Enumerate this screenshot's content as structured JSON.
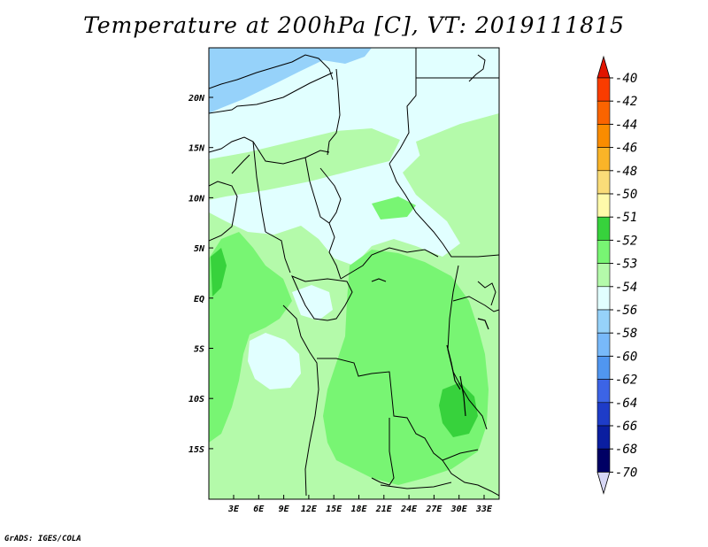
{
  "title": "Temperature at 200hPa [C], VT: 2019111815",
  "credit": "GrADS: IGES/COLA",
  "map": {
    "lat_labels": [
      "20N",
      "15N",
      "10N",
      "5N",
      "EQ",
      "5S",
      "10S",
      "15S"
    ],
    "lon_labels": [
      "3E",
      "6E",
      "9E",
      "12E",
      "15E",
      "18E",
      "21E",
      "24E",
      "27E",
      "30E",
      "33E"
    ],
    "colors": {
      "ocean_cold": "#96d2fa",
      "pale": "#e1ffff",
      "light_green": "#b4faaa",
      "mid_green": "#78f573",
      "dark_green": "#37d23c",
      "border": "#000000"
    }
  },
  "legend": {
    "labels": [
      "-40",
      "-42",
      "-44",
      "-46",
      "-48",
      "-50",
      "-51",
      "-52",
      "-53",
      "-54",
      "-56",
      "-58",
      "-60",
      "-62",
      "-64",
      "-66",
      "-68",
      "-70"
    ],
    "colors": [
      "#fa3c00",
      "#fa6400",
      "#fa8c00",
      "#fab428",
      "#fadc78",
      "#fffaaa",
      "#37d23c",
      "#78f573",
      "#b4faaa",
      "#e1ffff",
      "#96d2fa",
      "#78b9fa",
      "#5096f0",
      "#3c64e6",
      "#1e3cc8",
      "#0a1ea0",
      "#000064",
      "#d7d7f5"
    ],
    "top_arrow_color": "#e11400",
    "bottom_arrow_color": "#d7d7f5"
  }
}
